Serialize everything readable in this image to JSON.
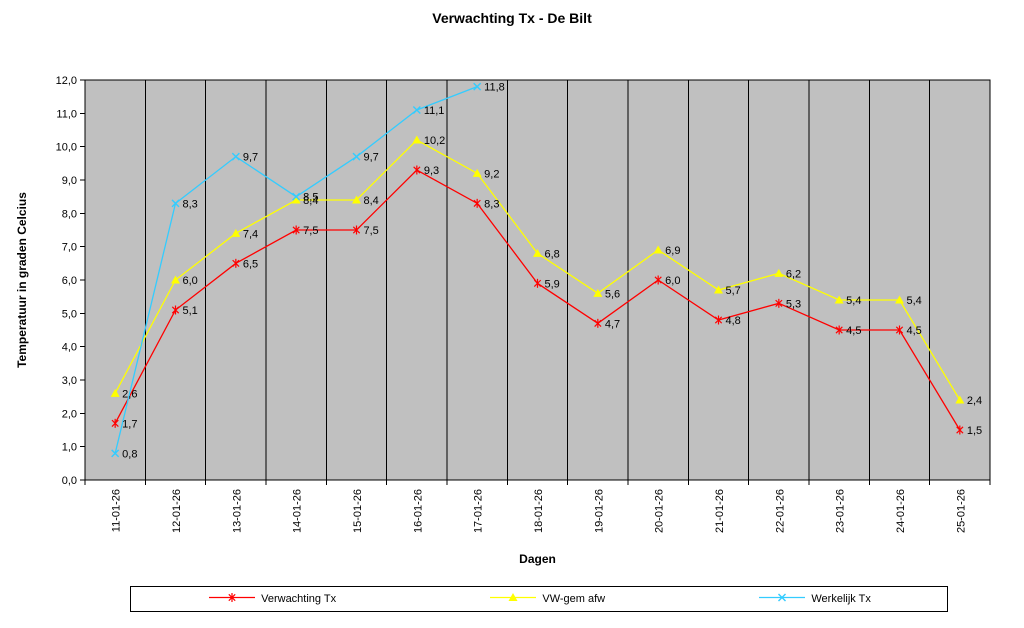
{
  "title": "Verwachting Tx - De Bilt",
  "axes": {
    "x_title": "Dagen",
    "y_title": "Temperatuur in graden Celcius"
  },
  "chart_data": {
    "type": "line",
    "categories": [
      "11-01-26",
      "12-01-26",
      "13-01-26",
      "14-01-26",
      "15-01-26",
      "16-01-26",
      "17-01-26",
      "18-01-26",
      "19-01-26",
      "20-01-26",
      "21-01-26",
      "22-01-26",
      "23-01-26",
      "24-01-26",
      "25-01-26"
    ],
    "series": [
      {
        "name": "Verwachting Tx",
        "color": "#FF0000",
        "marker": "star",
        "values": [
          1.7,
          5.1,
          6.5,
          7.5,
          7.5,
          9.3,
          8.3,
          5.9,
          4.7,
          6.0,
          4.8,
          5.3,
          4.5,
          4.5,
          1.5
        ],
        "labels": [
          "1,7",
          "5,1",
          "6,5",
          "7,5",
          "7,5",
          "9,3",
          "8,3",
          "5,9",
          "4,7",
          "6,0",
          "4,8",
          "5,3",
          "4,5",
          "4,5",
          "1,5"
        ]
      },
      {
        "name": "VW-gem afw",
        "color": "#FFFF00",
        "marker": "triangle",
        "values": [
          2.6,
          6.0,
          7.4,
          8.4,
          8.4,
          10.2,
          9.2,
          6.8,
          5.6,
          6.9,
          5.7,
          6.2,
          5.4,
          5.4,
          2.4
        ],
        "labels": [
          "2,6",
          "6,0",
          "7,4",
          "8,4",
          "8,4",
          "10,2",
          "9,2",
          "6,8",
          "5,6",
          "6,9",
          "5,7",
          "6,2",
          "5,4",
          "5,4",
          "2,4"
        ]
      },
      {
        "name": "Werkelijk Tx",
        "color": "#33CCFF",
        "marker": "x",
        "values": [
          0.8,
          8.3,
          9.7,
          8.5,
          9.7,
          11.1,
          11.8
        ],
        "labels": [
          "0,8",
          "8,3",
          "9,7",
          "8,5",
          "9,7",
          "11,1",
          "11,8"
        ]
      }
    ],
    "ylim": [
      0,
      12
    ],
    "y_step": 1,
    "y_tick_labels": [
      "0,0",
      "1,0",
      "2,0",
      "3,0",
      "4,0",
      "5,0",
      "6,0",
      "7,0",
      "8,0",
      "9,0",
      "10,0",
      "11,0",
      "12,0"
    ],
    "plot_bg": "#C0C0C0",
    "grid": "vertical",
    "grid_color": "#000000",
    "legend_position": "bottom"
  }
}
